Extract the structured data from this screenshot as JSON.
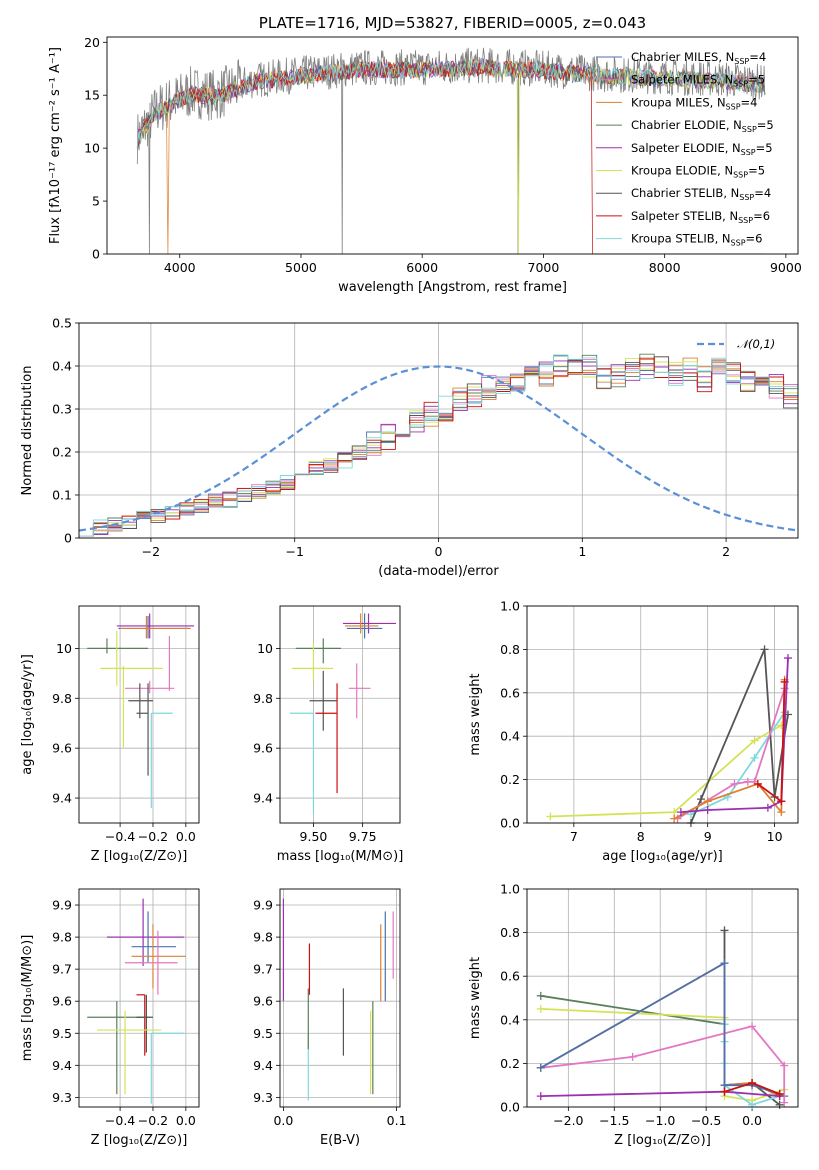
{
  "chart_data": [
    {
      "type": "line",
      "id": "spectrum",
      "title": "PLATE=1716, MJD=53827, FIBERID=0005, z=0.043",
      "xlabel": "wavelength [Angstrom, rest frame]",
      "ylabel": "Flux [fλ10⁻¹⁷ erg cm⁻² s⁻¹ A⁻¹]",
      "xlim": [
        3400,
        9100
      ],
      "ylim": [
        0,
        20.5
      ],
      "xticks": [
        4000,
        5000,
        6000,
        7000,
        8000,
        9000
      ],
      "yticks": [
        0,
        5,
        10,
        15,
        20
      ],
      "legend_position": "top-right",
      "series": [
        {
          "name": "Chabrier MILES, N_SSP=4",
          "label": "Chabrier MILES, N",
          "sub": "SSP",
          "suffix": "=4",
          "color": "#4c72b0"
        },
        {
          "name": "Salpeter MILES, N_SSP=5",
          "label": "Salpeter MILES, N",
          "sub": "SSP",
          "suffix": "=5",
          "color": "#e377c2"
        },
        {
          "name": "Kroupa MILES, N_SSP=4",
          "label": "Kroupa MILES, N",
          "sub": "SSP",
          "suffix": "=4",
          "color": "#dd8033"
        },
        {
          "name": "Chabrier ELODIE, N_SSP=5",
          "label": "Chabrier ELODIE, N",
          "sub": "SSP",
          "suffix": "=5",
          "color": "#5b7f5b"
        },
        {
          "name": "Salpeter ELODIE, N_SSP=5",
          "label": "Salpeter ELODIE, N",
          "sub": "SSP",
          "suffix": "=5",
          "color": "#9b30b0"
        },
        {
          "name": "Kroupa ELODIE, N_SSP=5",
          "label": "Kroupa ELODIE, N",
          "sub": "SSP",
          "suffix": "=5",
          "color": "#d4e356"
        },
        {
          "name": "Chabrier STELIB, N_SSP=4",
          "label": "Chabrier STELIB, N",
          "sub": "SSP",
          "suffix": "=4",
          "color": "#555555"
        },
        {
          "name": "Salpeter STELIB, N_SSP=6",
          "label": "Salpeter STELIB, N",
          "sub": "SSP",
          "suffix": "=6",
          "color": "#cc1111"
        },
        {
          "name": "Kroupa STELIB, N_SSP=6",
          "label": "Kroupa STELIB, N",
          "sub": "SSP",
          "suffix": "=6",
          "color": "#7fd8dd"
        }
      ],
      "data_color": "#808080",
      "continuum_knots": [
        [
          3650,
          11
        ],
        [
          3800,
          13.5
        ],
        [
          3950,
          14.5
        ],
        [
          4100,
          15.3
        ],
        [
          4300,
          15
        ],
        [
          4600,
          16.4
        ],
        [
          5000,
          17
        ],
        [
          5500,
          17.6
        ],
        [
          6000,
          17.6
        ],
        [
          6500,
          17.8
        ],
        [
          7000,
          17.5
        ],
        [
          7500,
          17
        ],
        [
          8000,
          16.8
        ],
        [
          8500,
          16.5
        ],
        [
          8830,
          16.2
        ]
      ]
    },
    {
      "type": "step-histogram",
      "id": "residuals",
      "xlabel": "(data-model)/error",
      "ylabel": "Normed distribution",
      "xlim": [
        -2.5,
        2.5
      ],
      "ylim": [
        0,
        0.5
      ],
      "xticks": [
        -2,
        -1,
        0,
        1,
        2
      ],
      "yticks": [
        0,
        0.1,
        0.2,
        0.3,
        0.4,
        0.5
      ],
      "legend": "𝒩(0,1)",
      "legend_position": "top-right",
      "gaussian_color": "#5b8fd6",
      "bin_width": 0.1,
      "bin_start": -2.5,
      "base_values": [
        0.02,
        0.025,
        0.03,
        0.04,
        0.045,
        0.05,
        0.06,
        0.07,
        0.075,
        0.085,
        0.09,
        0.1,
        0.11,
        0.12,
        0.13,
        0.15,
        0.165,
        0.17,
        0.18,
        0.2,
        0.22,
        0.235,
        0.25,
        0.27,
        0.29,
        0.3,
        0.32,
        0.33,
        0.35,
        0.36,
        0.37,
        0.39,
        0.38,
        0.4,
        0.39,
        0.4,
        0.37,
        0.38,
        0.39,
        0.4,
        0.4,
        0.38,
        0.39,
        0.37,
        0.4,
        0.38,
        0.37,
        0.36,
        0.35,
        0.33,
        0.31,
        0.3,
        0.29,
        0.27,
        0.25,
        0.24,
        0.22,
        0.2,
        0.19,
        0.17,
        0.15,
        0.14,
        0.12,
        0.11,
        0.1,
        0.09,
        0.08,
        0.07,
        0.06,
        0.05,
        0.045,
        0.04,
        0.035,
        0.03,
        0.03,
        0.025,
        0.02,
        0.02,
        0.02,
        0.02
      ]
    },
    {
      "type": "errorbar",
      "id": "age-vs-Z",
      "xlabel": "Z [log₁₀(Z/Z⊙)]",
      "ylabel": "age  [log₁₀(age/yr)]",
      "xlim": [
        -0.65,
        0.08
      ],
      "ylim": [
        9.3,
        10.17
      ],
      "xticks": [
        -0.4,
        -0.2,
        0.0
      ],
      "xticklabels": [
        "−0.4",
        "−0.2",
        "0.0"
      ],
      "yticks": [
        9.4,
        9.6,
        9.8,
        10.0
      ],
      "points": [
        {
          "x": -0.23,
          "y": 10.08,
          "ex": [
            0.18,
            0.25
          ],
          "ey": [
            0.04,
            0.05
          ],
          "c": "#4c72b0"
        },
        {
          "x": -0.22,
          "y": 10.09,
          "ex": [
            0.2,
            0.27
          ],
          "ey": [
            0.05,
            0.05
          ],
          "c": "#9b30b0"
        },
        {
          "x": -0.24,
          "y": 10.08,
          "ex": [
            0.16,
            0.27
          ],
          "ey": [
            0.04,
            0.05
          ],
          "c": "#dd8033"
        },
        {
          "x": -0.48,
          "y": 10.0,
          "ex": [
            0.12,
            0.25
          ],
          "ey": [
            0.02,
            0.04
          ],
          "c": "#5b7f5b"
        },
        {
          "x": -0.42,
          "y": 9.92,
          "ex": [
            0.1,
            0.28
          ],
          "ey": [
            0.07,
            0.15
          ],
          "c": "#d4e356"
        },
        {
          "x": -0.1,
          "y": 9.93,
          "ex": [
            0.0,
            0.0
          ],
          "ey": [
            0.1,
            0.12
          ],
          "c": "#e377c2"
        },
        {
          "x": -0.22,
          "y": 9.84,
          "ex": [
            0.15,
            0.15
          ],
          "ey": [
            0.02,
            0.03
          ],
          "c": "#e377c2"
        },
        {
          "x": -0.28,
          "y": 9.79,
          "ex": [
            0.07,
            0.08
          ],
          "ey": [
            0.07,
            0.07
          ],
          "c": "#555555"
        },
        {
          "x": -0.23,
          "y": 9.74,
          "ex": [
            0.07,
            0.0
          ],
          "ey": [
            0.25,
            0.12
          ],
          "c": "#555555"
        },
        {
          "x": -0.21,
          "y": 9.74,
          "ex": [
            0.0,
            0.13
          ],
          "ey": [
            0.38,
            0.0
          ],
          "c": "#7fd8dd"
        },
        {
          "x": -0.38,
          "y": 9.8,
          "ex": [
            0.0,
            0.0
          ],
          "ey": [
            0.2,
            0.13
          ],
          "c": "#d4e356"
        }
      ]
    },
    {
      "type": "errorbar",
      "id": "age-vs-mass",
      "xlabel": "mass [log₁₀(M/M⊙)]",
      "ylabel": "",
      "xlim": [
        9.33,
        9.94
      ],
      "ylim": [
        9.3,
        10.17
      ],
      "xticks": [
        9.5,
        9.75
      ],
      "xticklabels": [
        "9.50",
        "9.75"
      ],
      "yticks": [
        9.4,
        9.6,
        9.8,
        10.0
      ],
      "points": [
        {
          "x": 9.78,
          "y": 10.1,
          "ex": [
            0.13,
            0.14
          ],
          "ey": [
            0.04,
            0.04
          ],
          "c": "#9b30b0"
        },
        {
          "x": 9.76,
          "y": 10.08,
          "ex": [
            0.09,
            0.09
          ],
          "ey": [
            0.04,
            0.06
          ],
          "c": "#4c72b0"
        },
        {
          "x": 9.74,
          "y": 10.09,
          "ex": [
            0.08,
            0.09
          ],
          "ey": [
            0.03,
            0.05
          ],
          "c": "#dd8033"
        },
        {
          "x": 9.55,
          "y": 10.0,
          "ex": [
            0.14,
            0.09
          ],
          "ey": [
            0.06,
            0.04
          ],
          "c": "#5b7f5b"
        },
        {
          "x": 9.5,
          "y": 9.92,
          "ex": [
            0.11,
            0.1
          ],
          "ey": [
            0.05,
            0.1
          ],
          "c": "#d4e356"
        },
        {
          "x": 9.72,
          "y": 9.84,
          "ex": [
            0.04,
            0.07
          ],
          "ey": [
            0.12,
            0.1
          ],
          "c": "#e377c2"
        },
        {
          "x": 9.55,
          "y": 9.79,
          "ex": [
            0.07,
            0.07
          ],
          "ey": [
            0.12,
            0.12
          ],
          "c": "#555555"
        },
        {
          "x": 9.62,
          "y": 9.74,
          "ex": [
            0.11,
            0.0
          ],
          "ey": [
            0.32,
            0.12
          ],
          "c": "#cc1111"
        },
        {
          "x": 9.5,
          "y": 9.74,
          "ex": [
            0.12,
            0.0
          ],
          "ey": [
            0.4,
            0.0
          ],
          "c": "#7fd8dd"
        }
      ]
    },
    {
      "type": "line",
      "id": "weight-vs-age",
      "xlabel": "age  [log₁₀(age/yr)]",
      "ylabel": "mass weight",
      "xlim": [
        6.3,
        10.35
      ],
      "ylim": [
        0,
        1.0
      ],
      "xticks": [
        7,
        8,
        9,
        10
      ],
      "yticks": [
        0.0,
        0.2,
        0.4,
        0.6,
        0.8,
        1.0
      ],
      "series": [
        {
          "c": "#d4e356",
          "x": [
            6.65,
            8.5,
            9.7,
            10.1
          ],
          "y": [
            0.03,
            0.05,
            0.38,
            0.45
          ]
        },
        {
          "c": "#7fd8dd",
          "x": [
            8.75,
            9.3,
            9.7,
            10.15
          ],
          "y": [
            0.04,
            0.12,
            0.3,
            0.51
          ]
        },
        {
          "c": "#555555",
          "x": [
            8.75,
            8.9,
            9.85,
            10.0,
            10.2
          ],
          "y": [
            0.0,
            0.11,
            0.8,
            0.12,
            0.5
          ]
        },
        {
          "c": "#e377c2",
          "x": [
            8.55,
            9.4,
            9.6,
            9.7,
            10.15
          ],
          "y": [
            0.02,
            0.18,
            0.19,
            0.19,
            0.62
          ]
        },
        {
          "c": "#dd8033",
          "x": [
            8.5,
            9.0,
            9.75,
            10.1,
            10.15
          ],
          "y": [
            0.02,
            0.1,
            0.18,
            0.05,
            0.66
          ]
        },
        {
          "c": "#9b30b0",
          "x": [
            8.6,
            9.0,
            9.9,
            10.1,
            10.2
          ],
          "y": [
            0.05,
            0.06,
            0.07,
            0.1,
            0.76
          ]
        },
        {
          "c": "#cc1111",
          "x": [
            9.75,
            10.1,
            10.15
          ],
          "y": [
            0.18,
            0.1,
            0.65
          ]
        }
      ]
    },
    {
      "type": "errorbar",
      "id": "mass-vs-Z",
      "xlabel": "Z [log₁₀(Z/Z⊙)]",
      "ylabel": "mass [log₁₀(M/M⊙)]",
      "xlim": [
        -0.65,
        0.08
      ],
      "ylim": [
        9.27,
        9.95
      ],
      "xticks": [
        -0.4,
        -0.2,
        0.0
      ],
      "xticklabels": [
        "−0.4",
        "−0.2",
        "0.0"
      ],
      "yticks": [
        9.3,
        9.4,
        9.5,
        9.6,
        9.7,
        9.8,
        9.9
      ],
      "points": [
        {
          "x": -0.26,
          "y": 9.8,
          "ex": [
            0.22,
            0.25
          ],
          "ey": [
            0.09,
            0.12
          ],
          "c": "#9b30b0"
        },
        {
          "x": -0.23,
          "y": 9.77,
          "ex": [
            0.1,
            0.17
          ],
          "ey": [
            0.05,
            0.11
          ],
          "c": "#4c72b0"
        },
        {
          "x": -0.2,
          "y": 9.74,
          "ex": [
            0.13,
            0.2
          ],
          "ey": [
            0.1,
            0.1
          ],
          "c": "#dd8033"
        },
        {
          "x": -0.17,
          "y": 9.72,
          "ex": [
            0.2,
            0.12
          ],
          "ey": [
            0.1,
            0.1
          ],
          "c": "#e377c2"
        },
        {
          "x": -0.25,
          "y": 9.62,
          "ex": [
            0.05,
            0.0
          ],
          "ey": [
            0.19,
            0.0
          ],
          "c": "#cc1111"
        },
        {
          "x": -0.42,
          "y": 9.55,
          "ex": [
            0.18,
            0.2
          ],
          "ey": [
            0.24,
            0.05
          ],
          "c": "#5b7f5b"
        },
        {
          "x": -0.24,
          "y": 9.55,
          "ex": [
            0.06,
            0.04
          ],
          "ey": [
            0.11,
            0.07
          ],
          "c": "#555555"
        },
        {
          "x": -0.37,
          "y": 9.51,
          "ex": [
            0.17,
            0.22
          ],
          "ey": [
            0.2,
            0.06
          ],
          "c": "#d4e356"
        },
        {
          "x": -0.21,
          "y": 9.5,
          "ex": [
            0.0,
            0.2
          ],
          "ey": [
            0.22,
            0.0
          ],
          "c": "#7fd8dd"
        }
      ]
    },
    {
      "type": "errorbar",
      "id": "mass-vs-EBV",
      "xlabel": "E(B-V)",
      "ylabel": "",
      "xlim": [
        -0.003,
        0.103
      ],
      "ylim": [
        9.27,
        9.95
      ],
      "xticks": [
        0.0,
        0.1
      ],
      "xticklabels": [
        "0.0",
        "0.1"
      ],
      "yticks": [
        9.3,
        9.4,
        9.5,
        9.6,
        9.7,
        9.8,
        9.9
      ],
      "vbars": [
        {
          "x": 0.0,
          "y0": 9.6,
          "y1": 9.92,
          "c": "#9b30b0"
        },
        {
          "x": 0.022,
          "y0": 9.29,
          "y1": 9.5,
          "c": "#7fd8dd"
        },
        {
          "x": 0.022,
          "y0": 9.45,
          "y1": 9.64,
          "c": "#5b7f5b"
        },
        {
          "x": 0.023,
          "y0": 9.62,
          "y1": 9.78,
          "c": "#cc1111"
        },
        {
          "x": 0.053,
          "y0": 9.43,
          "y1": 9.64,
          "c": "#555555"
        },
        {
          "x": 0.077,
          "y0": 9.31,
          "y1": 9.57,
          "c": "#d4e356"
        },
        {
          "x": 0.079,
          "y0": 9.31,
          "y1": 9.6,
          "c": "#5b7f5b"
        },
        {
          "x": 0.086,
          "y0": 9.6,
          "y1": 9.84,
          "c": "#dd8033"
        },
        {
          "x": 0.09,
          "y0": 9.6,
          "y1": 9.88,
          "c": "#4c72b0"
        },
        {
          "x": 0.097,
          "y0": 9.67,
          "y1": 9.88,
          "c": "#e377c2"
        }
      ]
    },
    {
      "type": "line",
      "id": "weight-vs-Z",
      "xlabel": "Z [log₁₀(Z/Z⊙)]",
      "ylabel": "mass weight",
      "xlim": [
        -2.45,
        0.5
      ],
      "ylim": [
        0,
        1.0
      ],
      "xticks": [
        -2.0,
        -1.5,
        -1.0,
        -0.5,
        0.0
      ],
      "xticklabels": [
        "−2.0",
        "−1.5",
        "−1.0",
        "−0.5",
        "0.0"
      ],
      "yticks": [
        0.0,
        0.2,
        0.4,
        0.6,
        0.8,
        1.0
      ],
      "series": [
        {
          "c": "#5b7f5b",
          "x": [
            -2.3,
            -0.3,
            -0.3,
            0.0,
            0.35
          ],
          "y": [
            0.51,
            0.38,
            0.1,
            0.11,
            0.05
          ]
        },
        {
          "c": "#d4e356",
          "x": [
            -2.3,
            -0.3,
            -0.3,
            0.0,
            0.35
          ],
          "y": [
            0.45,
            0.41,
            0.05,
            0.03,
            0.08
          ]
        },
        {
          "c": "#555555",
          "x": [
            -0.3,
            -0.3,
            0.0,
            0.3
          ],
          "y": [
            0.81,
            0.1,
            0.11,
            0.01
          ]
        },
        {
          "c": "#7fd8dd",
          "x": [
            -0.3,
            -0.3,
            -0.3,
            -0.3,
            0.0,
            0.3
          ],
          "y": [
            0.38,
            0.3,
            0.2,
            0.1,
            0.01,
            0.05
          ]
        },
        {
          "c": "#e377c2",
          "x": [
            -2.3,
            -1.3,
            0.0,
            0.35,
            0.35
          ],
          "y": [
            0.18,
            0.23,
            0.37,
            0.19,
            0.02
          ]
        },
        {
          "c": "#dd8033",
          "x": [
            -2.3,
            -0.3,
            -0.3,
            0.0,
            0.3
          ],
          "y": [
            0.18,
            0.66,
            0.1,
            0.11,
            0.05
          ]
        },
        {
          "c": "#4c72b0",
          "x": [
            -2.3,
            -0.3,
            -0.3,
            0.0,
            0.3
          ],
          "y": [
            0.18,
            0.66,
            0.1,
            0.1,
            0.06
          ]
        },
        {
          "c": "#9b30b0",
          "x": [
            -2.3,
            -0.3,
            0.3
          ],
          "y": [
            0.05,
            0.07,
            0.05
          ]
        },
        {
          "c": "#cc1111",
          "x": [
            -0.3,
            0.0,
            0.3
          ],
          "y": [
            0.07,
            0.11,
            0.06
          ]
        }
      ]
    }
  ]
}
